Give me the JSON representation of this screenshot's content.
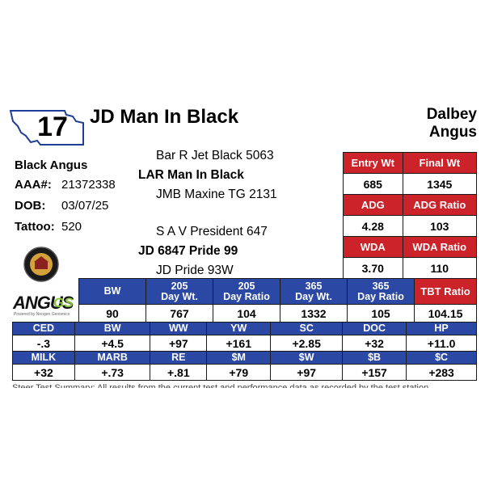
{
  "lot": {
    "number": "17"
  },
  "animal": {
    "name": "JD Man In Black",
    "breed": "Black Angus"
  },
  "breeder": {
    "line1": "Dalbey",
    "line2": "Angus"
  },
  "info": [
    {
      "label": "AAA#:",
      "value": "21372338"
    },
    {
      "label": "DOB:",
      "value": "03/07/25"
    },
    {
      "label": "Tattoo:",
      "value": "520"
    }
  ],
  "pedigree": {
    "sire_sire": "Bar R Jet Black 5063",
    "sire": "LAR Man In Black",
    "sire_dam": "JMB Maxine TG 2131",
    "dam_sire": "S A V President 647",
    "dam": "JD 6847 Pride 99",
    "dam_dam": "JD Pride 93W"
  },
  "logos": {
    "angus_text": "ANGUS",
    "angus_gs": "GS",
    "angus_sub": "Powered by Neogen Genomics"
  },
  "performance": {
    "h1": [
      "Entry Wt",
      "Final Wt"
    ],
    "v1": [
      "685",
      "1345"
    ],
    "h2": [
      "ADG",
      "ADG Ratio"
    ],
    "v2": [
      "4.28",
      "103"
    ],
    "h3": [
      "WDA",
      "WDA Ratio"
    ],
    "v3": [
      "3.70",
      "110"
    ],
    "tbt_label": "TBT Ratio",
    "tbt_value": "104.15"
  },
  "weights": {
    "headers": [
      {
        "l1": "BW",
        "l2": ""
      },
      {
        "l1": "205",
        "l2": "Day Wt."
      },
      {
        "l1": "205",
        "l2": "Day Ratio"
      },
      {
        "l1": "365",
        "l2": "Day Wt."
      },
      {
        "l1": "365",
        "l2": "Day Ratio"
      }
    ],
    "values": [
      "90",
      "767",
      "104",
      "1332",
      "105"
    ]
  },
  "epds": {
    "row1_headers": [
      "CED",
      "BW",
      "WW",
      "YW",
      "SC",
      "DOC",
      "HP"
    ],
    "row1_values": [
      "-.3",
      "+4.5",
      "+97",
      "+161",
      "+2.85",
      "+32",
      "+11.0"
    ],
    "row2_headers": [
      "MILK",
      "MARB",
      "RE",
      "$M",
      "$W",
      "$B",
      "$C"
    ],
    "row2_values": [
      "+32",
      "+.73",
      "+.81",
      "+79",
      "+97",
      "+157",
      "+283"
    ]
  },
  "footer": {
    "text": "Steer Test Summary: All results from the current test and performance data as recorded by the test station."
  },
  "colors": {
    "red": "#cc2229",
    "blue": "#2a48a4",
    "green": "#8cc63f"
  }
}
